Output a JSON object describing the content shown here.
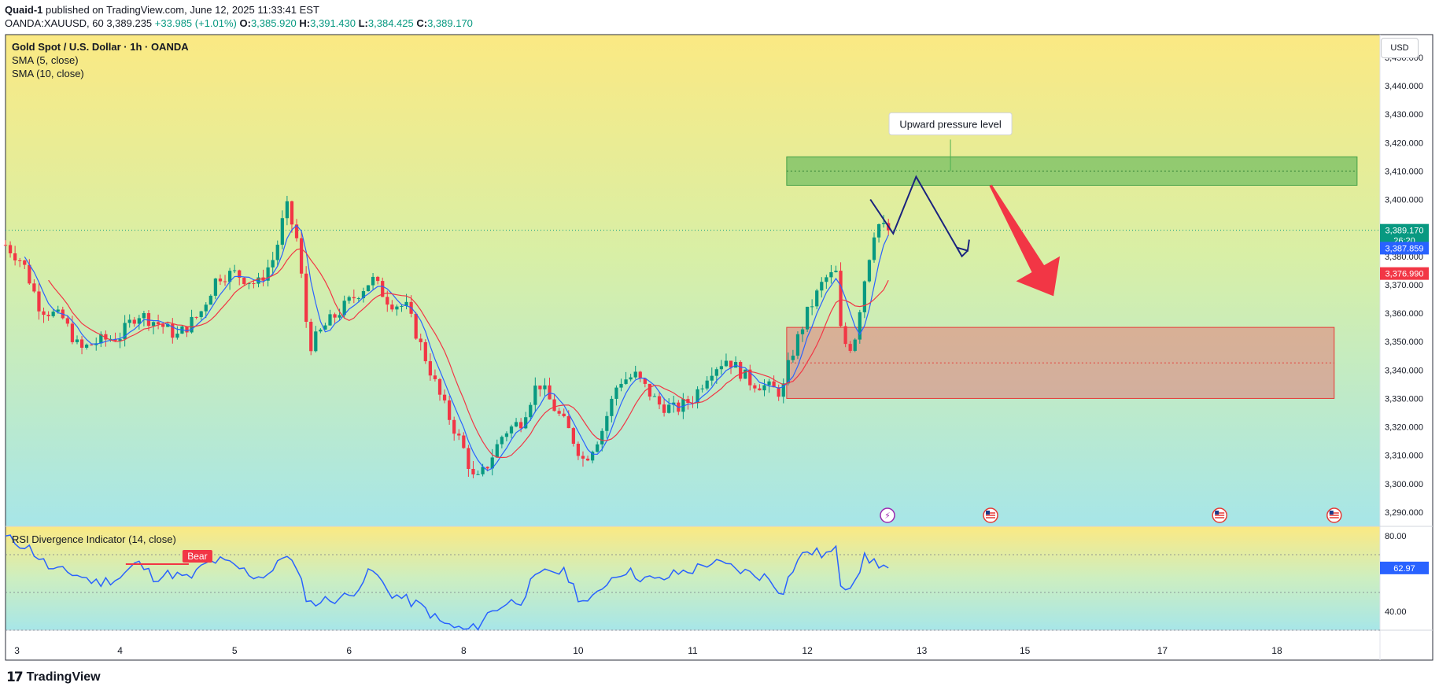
{
  "header": {
    "publisher": "Quaid-1",
    "published_text": "published on TradingView.com, June 12, 2025 11:33:41 EST",
    "symbol": "OANDA:XAUUSD, 60",
    "price": "3,389.235",
    "change": "+33.985 (+1.01%)",
    "o_label": "O:",
    "o": "3,385.920",
    "h_label": "H:",
    "h": "3,391.430",
    "l_label": "L:",
    "l": "3,384.425",
    "c_label": "C:",
    "c": "3,389.170"
  },
  "legend": {
    "title": "Gold Spot / U.S. Dollar · 1h · OANDA",
    "sma5": "SMA (5, close)",
    "sma10": "SMA (10, close)",
    "rsi": "RSI Divergence Indicator (14, close)"
  },
  "currency": "USD",
  "annotation": "Upward pressure level",
  "bear_label": "Bear",
  "price_tags": {
    "last": "3,389.170",
    "countdown": "26:20",
    "sma5": "3,387.859",
    "sma10": "3,376.990",
    "rsi": "62.97"
  },
  "footer": {
    "brand": "TradingView",
    "logo_glyph": "17"
  },
  "colors": {
    "up": "#089981",
    "down": "#f23645",
    "sma5": "#2962ff",
    "sma10": "#f23645",
    "rsi": "#2962ff",
    "resistance_zone": "#4caf50",
    "support_zone": "#e57373",
    "arrow": "#f23645",
    "path": "#1a237e"
  },
  "chart_data": [
    {
      "type": "candlestick",
      "title": "Gold Spot / U.S. Dollar · 1h · OANDA",
      "y_range": [
        3285,
        3458
      ],
      "y_ticks": [
        3290,
        3300,
        3310,
        3320,
        3330,
        3340,
        3350,
        3360,
        3370,
        3380,
        3390,
        3400,
        3410,
        3420,
        3430,
        3440,
        3450
      ],
      "y_tick_labels": [
        "3,290.000",
        "3,300.000",
        "3,310.000",
        "3,320.000",
        "3,330.000",
        "3,340.000",
        "3,350.000",
        "3,360.000",
        "3,370.000",
        "3,380.000",
        "3,390.000",
        "3,400.000",
        "3,410.000",
        "3,420.000",
        "3,430.000",
        "3,440.000",
        "3,450.000"
      ],
      "x_labels": [
        {
          "label": "3",
          "day": 3.1
        },
        {
          "label": "4",
          "day": 4
        },
        {
          "label": "5",
          "day": 5
        },
        {
          "label": "6",
          "day": 6
        },
        {
          "label": "8",
          "day": 7
        },
        {
          "label": "10",
          "day": 8
        },
        {
          "label": "11",
          "day": 9
        },
        {
          "label": "12",
          "day": 10
        },
        {
          "label": "13",
          "day": 11
        },
        {
          "label": "15",
          "day": 11.9
        },
        {
          "label": "17",
          "day": 13.1
        },
        {
          "label": "18",
          "day": 14.1
        }
      ],
      "x_range_days": [
        3.0,
        15.0
      ],
      "close_anchors": [
        [
          3.0,
          3384
        ],
        [
          3.15,
          3378
        ],
        [
          3.3,
          3362
        ],
        [
          3.5,
          3358
        ],
        [
          3.65,
          3347
        ],
        [
          3.8,
          3350
        ],
        [
          4.0,
          3352
        ],
        [
          4.15,
          3360
        ],
        [
          4.35,
          3356
        ],
        [
          4.5,
          3352
        ],
        [
          4.7,
          3360
        ],
        [
          4.85,
          3373
        ],
        [
          5.0,
          3374
        ],
        [
          5.2,
          3370
        ],
        [
          5.35,
          3380
        ],
        [
          5.45,
          3398
        ],
        [
          5.55,
          3385
        ],
        [
          5.65,
          3348
        ],
        [
          5.8,
          3356
        ],
        [
          6.0,
          3364
        ],
        [
          6.2,
          3372
        ],
        [
          6.35,
          3364
        ],
        [
          6.5,
          3362
        ],
        [
          6.65,
          3346
        ],
        [
          6.8,
          3330
        ],
        [
          7.0,
          3312
        ],
        [
          7.1,
          3300
        ],
        [
          7.2,
          3306
        ],
        [
          7.35,
          3318
        ],
        [
          7.5,
          3322
        ],
        [
          7.65,
          3336
        ],
        [
          7.8,
          3326
        ],
        [
          7.9,
          3320
        ],
        [
          8.05,
          3308
        ],
        [
          8.2,
          3318
        ],
        [
          8.35,
          3336
        ],
        [
          8.5,
          3338
        ],
        [
          8.7,
          3328
        ],
        [
          8.85,
          3326
        ],
        [
          9.0,
          3330
        ],
        [
          9.15,
          3340
        ],
        [
          9.3,
          3344
        ],
        [
          9.5,
          3336
        ],
        [
          9.65,
          3334
        ],
        [
          9.78,
          3332
        ],
        [
          9.85,
          3344
        ],
        [
          10.0,
          3360
        ],
        [
          10.15,
          3372
        ],
        [
          10.25,
          3374
        ],
        [
          10.3,
          3350
        ],
        [
          10.4,
          3348
        ],
        [
          10.5,
          3372
        ],
        [
          10.6,
          3392
        ],
        [
          10.7,
          3389
        ]
      ],
      "sma_series": [
        {
          "name": "SMA (5, close)",
          "period": 5
        },
        {
          "name": "SMA (10, close)",
          "period": 10
        }
      ],
      "resistance_zone": {
        "from_day": 9.82,
        "to_day": 14.8,
        "low": 3405,
        "high": 3415,
        "mid": 3410,
        "label": "Upward pressure level"
      },
      "support_zone": {
        "from_day": 9.82,
        "to_day": 14.6,
        "low": 3330,
        "high": 3355,
        "mid": 3342.5
      },
      "projection_path": [
        [
          10.55,
          3400
        ],
        [
          10.75,
          3388
        ],
        [
          10.95,
          3408
        ],
        [
          11.35,
          3380
        ],
        [
          11.4,
          3382
        ]
      ],
      "arrow": {
        "from": [
          11.6,
          3405
        ],
        "to": [
          12.15,
          3366
        ]
      },
      "event_markers_days": [
        10.7,
        11.6,
        13.6,
        14.6
      ],
      "last_price": 3389.17
    },
    {
      "type": "line",
      "title": "RSI Divergence Indicator (14, close)",
      "y_range": [
        30,
        85
      ],
      "y_ticks": [
        40,
        80
      ],
      "y_tick_labels": [
        "40.00",
        "80.00"
      ],
      "bands": [
        70,
        50,
        30
      ],
      "anchors": [
        [
          3.0,
          79
        ],
        [
          3.2,
          74
        ],
        [
          3.4,
          62
        ],
        [
          3.6,
          60
        ],
        [
          3.8,
          55
        ],
        [
          4.0,
          58
        ],
        [
          4.15,
          66
        ],
        [
          4.3,
          58
        ],
        [
          4.45,
          60
        ],
        [
          4.6,
          57
        ],
        [
          4.75,
          65
        ],
        [
          4.85,
          67
        ],
        [
          5.0,
          64
        ],
        [
          5.2,
          58
        ],
        [
          5.35,
          62
        ],
        [
          5.45,
          72
        ],
        [
          5.55,
          60
        ],
        [
          5.65,
          44
        ],
        [
          5.8,
          46
        ],
        [
          6.0,
          48
        ],
        [
          6.2,
          62
        ],
        [
          6.35,
          50
        ],
        [
          6.5,
          46
        ],
        [
          6.65,
          42
        ],
        [
          6.8,
          34
        ],
        [
          7.0,
          30
        ],
        [
          7.1,
          31
        ],
        [
          7.2,
          38
        ],
        [
          7.35,
          44
        ],
        [
          7.5,
          46
        ],
        [
          7.6,
          56
        ],
        [
          7.75,
          62
        ],
        [
          7.9,
          60
        ],
        [
          8.0,
          48
        ],
        [
          8.1,
          44
        ],
        [
          8.25,
          56
        ],
        [
          8.4,
          62
        ],
        [
          8.55,
          58
        ],
        [
          8.7,
          56
        ],
        [
          8.85,
          60
        ],
        [
          9.0,
          62
        ],
        [
          9.15,
          66
        ],
        [
          9.3,
          64
        ],
        [
          9.5,
          60
        ],
        [
          9.65,
          58
        ],
        [
          9.78,
          50
        ],
        [
          9.9,
          66
        ],
        [
          10.0,
          72
        ],
        [
          10.15,
          70
        ],
        [
          10.25,
          72
        ],
        [
          10.3,
          52
        ],
        [
          10.4,
          56
        ],
        [
          10.5,
          68
        ],
        [
          10.6,
          66
        ],
        [
          10.7,
          63
        ]
      ],
      "divergence": {
        "from": [
          4.05,
          65
        ],
        "to": [
          4.6,
          65
        ],
        "label": "Bear"
      },
      "last_value": 62.97
    }
  ]
}
